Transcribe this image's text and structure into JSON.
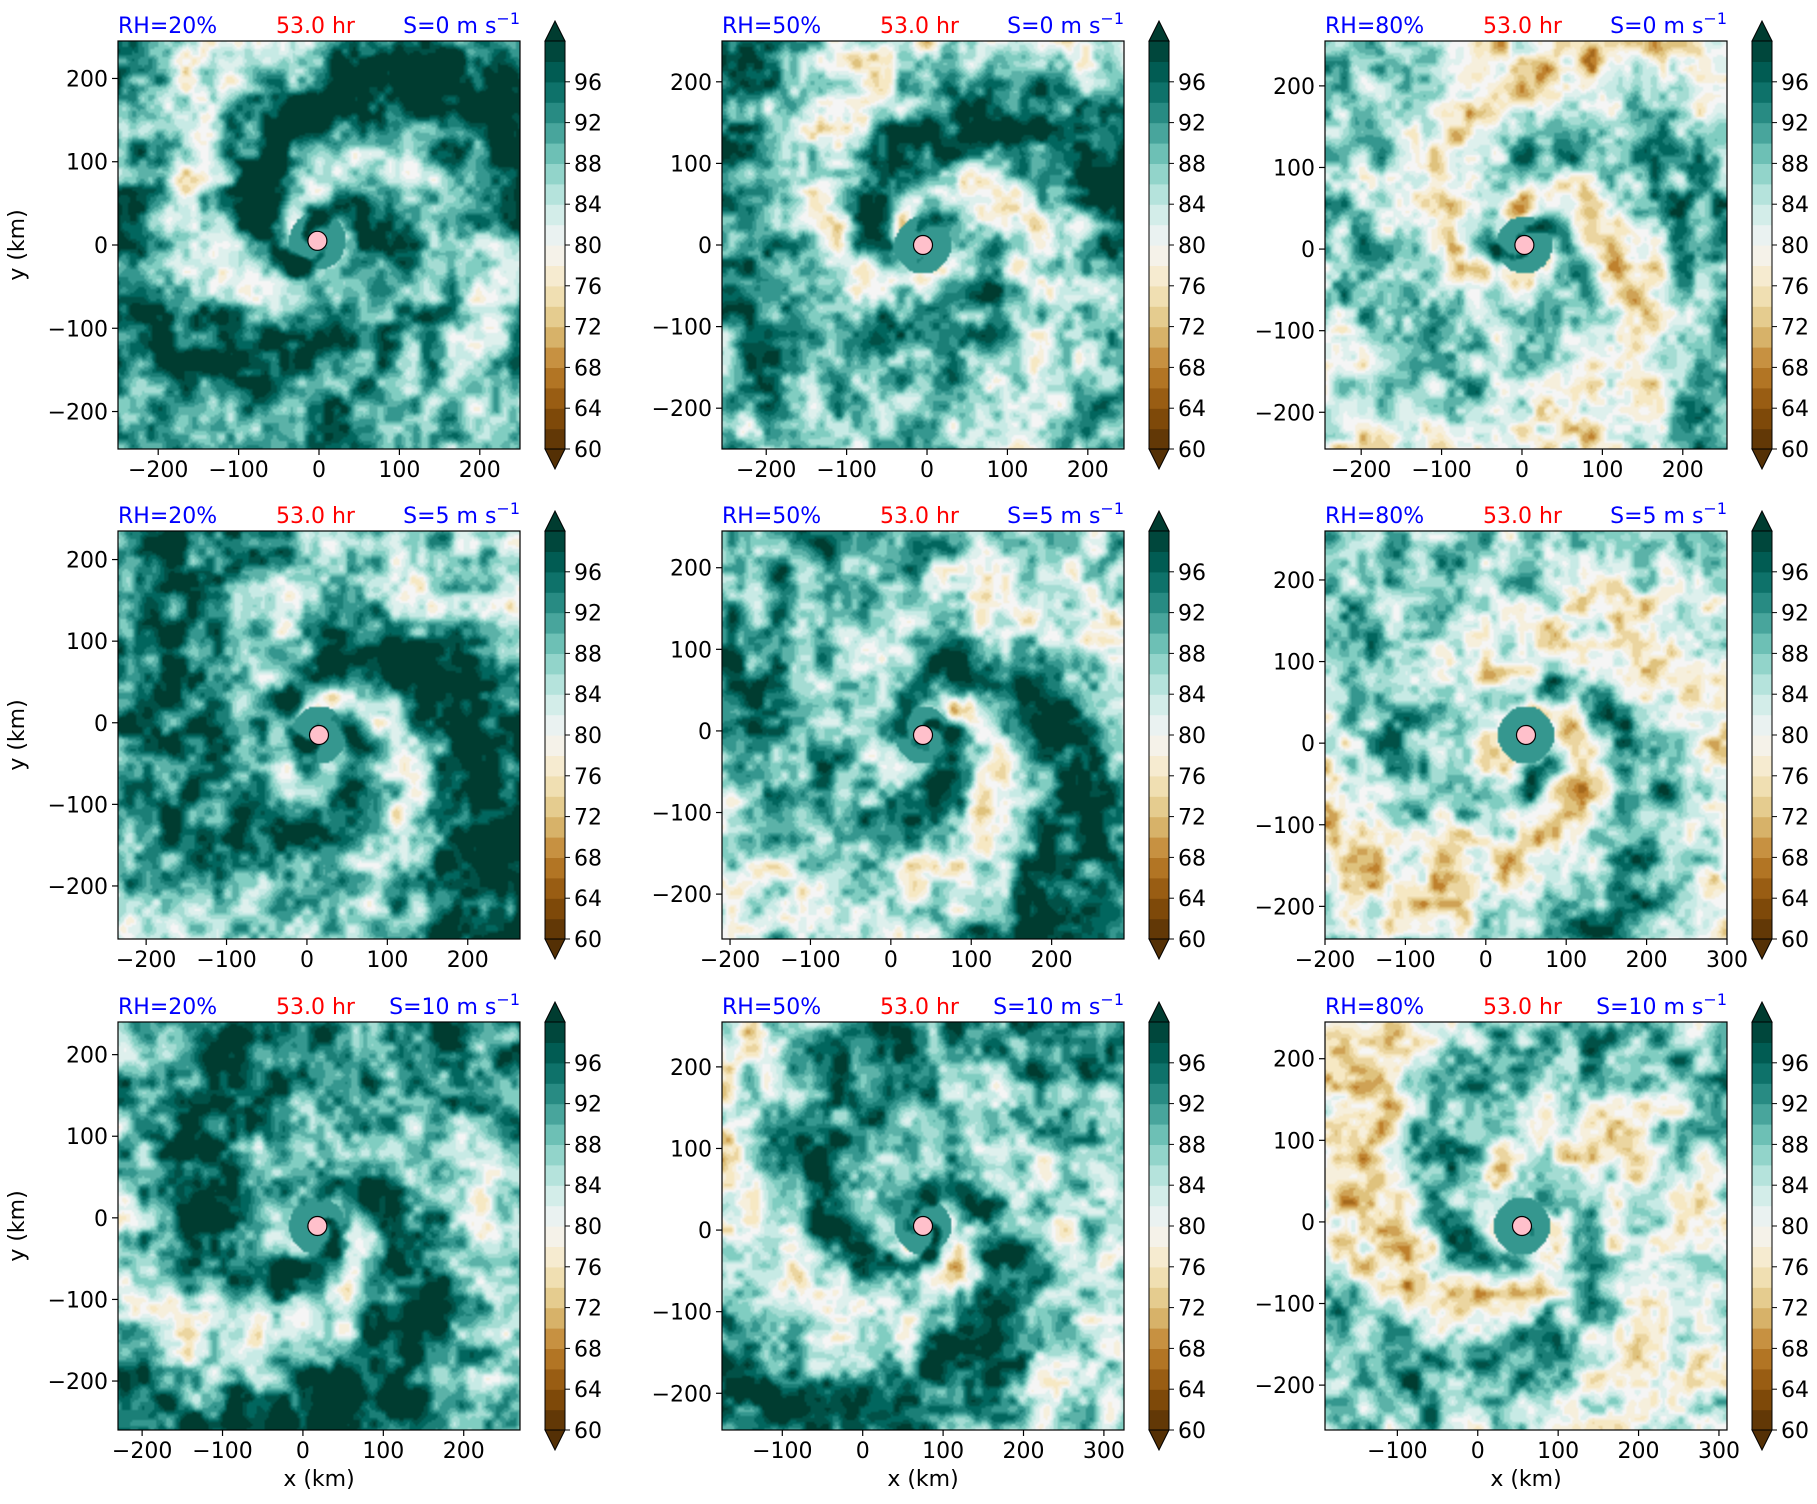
{
  "figure": {
    "time_label": "53.0 hr",
    "xlabel": "x (km)",
    "ylabel": "y (km)",
    "colors": {
      "title_blue": "#0000ff",
      "title_red": "#ff0000",
      "center_marker": "#ffc0cb",
      "colormap": [
        "#543005",
        "#8c510a",
        "#bf812d",
        "#dfc27d",
        "#f6e8c3",
        "#f5f5f5",
        "#c7eae5",
        "#80cdc1",
        "#35978f",
        "#01665e",
        "#003c30"
      ]
    }
  },
  "chart_data": [
    {
      "type": "heatmap",
      "rh": "RH=20%",
      "time": "53.0 hr",
      "shear_prefix": "S=0 m s",
      "shear_exp": "−1",
      "xticks": [
        -200,
        -100,
        0,
        100,
        200
      ],
      "yticks": [
        -200,
        -100,
        0,
        100,
        200
      ],
      "xlim": [
        -250,
        250
      ],
      "ylim": [
        -245,
        245
      ],
      "center": [
        -2,
        5
      ],
      "colorbar_ticks": [
        60,
        64,
        68,
        72,
        76,
        80,
        84,
        88,
        92,
        96
      ],
      "colorbar_range": [
        60,
        100
      ]
    },
    {
      "type": "heatmap",
      "rh": "RH=50%",
      "time": "53.0 hr",
      "shear_prefix": "S=0 m s",
      "shear_exp": "−1",
      "xticks": [
        -200,
        -100,
        0,
        100,
        200
      ],
      "yticks": [
        -200,
        -100,
        0,
        100,
        200
      ],
      "xlim": [
        -255,
        245
      ],
      "ylim": [
        -250,
        250
      ],
      "center": [
        -5,
        0
      ],
      "colorbar_ticks": [
        60,
        64,
        68,
        72,
        76,
        80,
        84,
        88,
        92,
        96
      ],
      "colorbar_range": [
        60,
        100
      ]
    },
    {
      "type": "heatmap",
      "rh": "RH=80%",
      "time": "53.0 hr",
      "shear_prefix": "S=0 m s",
      "shear_exp": "−1",
      "xticks": [
        -200,
        -100,
        0,
        100,
        200
      ],
      "yticks": [
        -200,
        -100,
        0,
        100,
        200
      ],
      "xlim": [
        -245,
        255
      ],
      "ylim": [
        -245,
        255
      ],
      "center": [
        3,
        5
      ],
      "colorbar_ticks": [
        60,
        64,
        68,
        72,
        76,
        80,
        84,
        88,
        92,
        96
      ],
      "colorbar_range": [
        60,
        100
      ]
    },
    {
      "type": "heatmap",
      "rh": "RH=20%",
      "time": "53.0 hr",
      "shear_prefix": "S=5 m s",
      "shear_exp": "−1",
      "xticks": [
        -200,
        -100,
        0,
        100,
        200
      ],
      "yticks": [
        -200,
        -100,
        0,
        100,
        200
      ],
      "xlim": [
        -235,
        265
      ],
      "ylim": [
        -265,
        235
      ],
      "center": [
        15,
        -15
      ],
      "colorbar_ticks": [
        60,
        64,
        68,
        72,
        76,
        80,
        84,
        88,
        92,
        96
      ],
      "colorbar_range": [
        60,
        100
      ]
    },
    {
      "type": "heatmap",
      "rh": "RH=50%",
      "time": "53.0 hr",
      "shear_prefix": "S=5 m s",
      "shear_exp": "−1",
      "xticks": [
        -200,
        -100,
        0,
        100,
        200
      ],
      "yticks": [
        -200,
        -100,
        0,
        100,
        200
      ],
      "xlim": [
        -210,
        290
      ],
      "ylim": [
        -255,
        245
      ],
      "center": [
        40,
        -5
      ],
      "colorbar_ticks": [
        60,
        64,
        68,
        72,
        76,
        80,
        84,
        88,
        92,
        96
      ],
      "colorbar_range": [
        60,
        100
      ]
    },
    {
      "type": "heatmap",
      "rh": "RH=80%",
      "time": "53.0 hr",
      "shear_prefix": "S=5 m s",
      "shear_exp": "−1",
      "xticks": [
        -200,
        -100,
        0,
        100,
        200,
        300
      ],
      "yticks": [
        -200,
        -100,
        0,
        100,
        200
      ],
      "xlim": [
        -200,
        300
      ],
      "ylim": [
        -240,
        260
      ],
      "center": [
        50,
        10
      ],
      "colorbar_ticks": [
        60,
        64,
        68,
        72,
        76,
        80,
        84,
        88,
        92,
        96
      ],
      "colorbar_range": [
        60,
        100
      ]
    },
    {
      "type": "heatmap",
      "rh": "RH=20%",
      "time": "53.0 hr",
      "shear_prefix": "S=10 m s",
      "shear_exp": "−1",
      "xticks": [
        -200,
        -100,
        0,
        100,
        200
      ],
      "yticks": [
        -200,
        -100,
        0,
        100,
        200
      ],
      "xlim": [
        -230,
        270
      ],
      "ylim": [
        -260,
        240
      ],
      "center": [
        18,
        -10
      ],
      "colorbar_ticks": [
        60,
        64,
        68,
        72,
        76,
        80,
        84,
        88,
        92,
        96
      ],
      "colorbar_range": [
        60,
        100
      ]
    },
    {
      "type": "heatmap",
      "rh": "RH=50%",
      "time": "53.0 hr",
      "shear_prefix": "S=10 m s",
      "shear_exp": "−1",
      "xticks": [
        -100,
        0,
        100,
        200,
        300
      ],
      "yticks": [
        -200,
        -100,
        0,
        100,
        200
      ],
      "xlim": [
        -175,
        325
      ],
      "ylim": [
        -245,
        255
      ],
      "center": [
        75,
        5
      ],
      "colorbar_ticks": [
        60,
        64,
        68,
        72,
        76,
        80,
        84,
        88,
        92,
        96
      ],
      "colorbar_range": [
        60,
        100
      ]
    },
    {
      "type": "heatmap",
      "rh": "RH=80%",
      "time": "53.0 hr",
      "shear_prefix": "S=10 m s",
      "shear_exp": "−1",
      "xticks": [
        -100,
        0,
        100,
        200,
        300
      ],
      "yticks": [
        -200,
        -100,
        0,
        100,
        200
      ],
      "xlim": [
        -190,
        310
      ],
      "ylim": [
        -255,
        245
      ],
      "center": [
        55,
        -5
      ],
      "colorbar_ticks": [
        60,
        64,
        68,
        72,
        76,
        80,
        84,
        88,
        92,
        96
      ],
      "colorbar_range": [
        60,
        100
      ]
    }
  ]
}
